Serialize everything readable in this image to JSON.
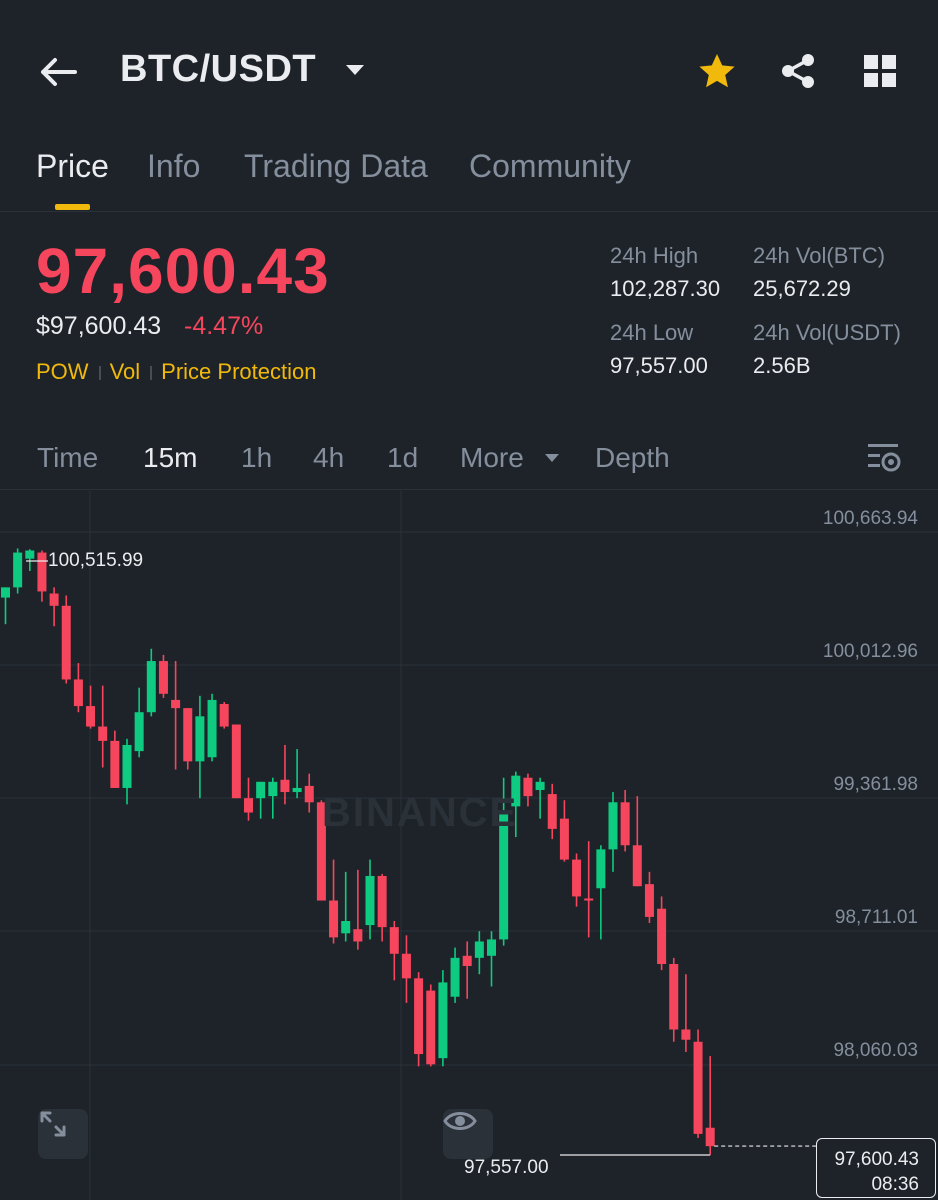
{
  "header": {
    "pair": "BTC/USDT",
    "back_icon": "arrow-left-icon",
    "favorite_icon": "star-icon",
    "share_icon": "share-icon",
    "grid_icon": "grid-icon",
    "accent_color": "#f0b90b"
  },
  "tabs": [
    {
      "label": "Price",
      "active": true
    },
    {
      "label": "Info",
      "active": false
    },
    {
      "label": "Trading Data",
      "active": false
    },
    {
      "label": "Community",
      "active": false
    }
  ],
  "price": {
    "last": "97,600.43",
    "usd": "$97,600.43",
    "change": "-4.47%",
    "color_down": "#f6465d",
    "color_up": "#0ecb81"
  },
  "tags": [
    "POW",
    "Vol",
    "Price Protection"
  ],
  "stats": {
    "high_label": "24h High",
    "high_value": "102,287.30",
    "vol_btc_label": "24h Vol(BTC)",
    "vol_btc_value": "25,672.29",
    "low_label": "24h Low",
    "low_value": "97,557.00",
    "vol_usdt_label": "24h Vol(USDT)",
    "vol_usdt_value": "2.56B"
  },
  "intervals": {
    "items": [
      "Time",
      "15m",
      "1h",
      "4h",
      "1d",
      "More",
      "Depth"
    ],
    "active": "15m"
  },
  "chart_data": {
    "type": "candlestick",
    "interval": "15m",
    "y_axis_labels": [
      "100,663.94",
      "100,012.96",
      "99,361.98",
      "98,711.01",
      "98,060.03"
    ],
    "ylim": [
      97300,
      100800
    ],
    "max_label": "100,515.99",
    "min_label": "97,557.00",
    "last_price": "97,600.43",
    "countdown": "08:36",
    "watermark": "BINANCE",
    "candles": [
      {
        "o": 100280,
        "h": 100330,
        "l": 100150,
        "c": 100330
      },
      {
        "o": 100330,
        "h": 100520,
        "l": 100300,
        "c": 100500
      },
      {
        "o": 100470,
        "h": 100516,
        "l": 100410,
        "c": 100510
      },
      {
        "o": 100500,
        "h": 100510,
        "l": 100260,
        "c": 100310
      },
      {
        "o": 100300,
        "h": 100330,
        "l": 100140,
        "c": 100240
      },
      {
        "o": 100240,
        "h": 100290,
        "l": 99860,
        "c": 99880
      },
      {
        "o": 99880,
        "h": 99960,
        "l": 99720,
        "c": 99750
      },
      {
        "o": 99750,
        "h": 99850,
        "l": 99640,
        "c": 99650
      },
      {
        "o": 99650,
        "h": 99850,
        "l": 99450,
        "c": 99580
      },
      {
        "o": 99580,
        "h": 99630,
        "l": 99350,
        "c": 99350
      },
      {
        "o": 99350,
        "h": 99590,
        "l": 99270,
        "c": 99560
      },
      {
        "o": 99530,
        "h": 99840,
        "l": 99500,
        "c": 99720
      },
      {
        "o": 99720,
        "h": 100030,
        "l": 99700,
        "c": 99970
      },
      {
        "o": 99970,
        "h": 100000,
        "l": 99790,
        "c": 99810
      },
      {
        "o": 99780,
        "h": 99970,
        "l": 99440,
        "c": 99740
      },
      {
        "o": 99740,
        "h": 99740,
        "l": 99440,
        "c": 99480
      },
      {
        "o": 99480,
        "h": 99800,
        "l": 99300,
        "c": 99700
      },
      {
        "o": 99500,
        "h": 99810,
        "l": 99480,
        "c": 99780
      },
      {
        "o": 99760,
        "h": 99770,
        "l": 99640,
        "c": 99650
      },
      {
        "o": 99660,
        "h": 99660,
        "l": 99300,
        "c": 99300
      },
      {
        "o": 99300,
        "h": 99400,
        "l": 99190,
        "c": 99230
      },
      {
        "o": 99300,
        "h": 99380,
        "l": 99200,
        "c": 99380
      },
      {
        "o": 99310,
        "h": 99400,
        "l": 99200,
        "c": 99380
      },
      {
        "o": 99390,
        "h": 99560,
        "l": 99270,
        "c": 99330
      },
      {
        "o": 99330,
        "h": 99540,
        "l": 99300,
        "c": 99350
      },
      {
        "o": 99360,
        "h": 99420,
        "l": 99230,
        "c": 99280
      },
      {
        "o": 99280,
        "h": 99290,
        "l": 98800,
        "c": 98800
      },
      {
        "o": 98800,
        "h": 99000,
        "l": 98590,
        "c": 98620
      },
      {
        "o": 98640,
        "h": 98940,
        "l": 98600,
        "c": 98700
      },
      {
        "o": 98660,
        "h": 98950,
        "l": 98560,
        "c": 98600
      },
      {
        "o": 98680,
        "h": 99000,
        "l": 98610,
        "c": 98920
      },
      {
        "o": 98920,
        "h": 98930,
        "l": 98600,
        "c": 98670
      },
      {
        "o": 98670,
        "h": 98700,
        "l": 98410,
        "c": 98540
      },
      {
        "o": 98540,
        "h": 98630,
        "l": 98300,
        "c": 98420
      },
      {
        "o": 98420,
        "h": 98450,
        "l": 97990,
        "c": 98050
      },
      {
        "o": 98360,
        "h": 98390,
        "l": 97990,
        "c": 98000
      },
      {
        "o": 98030,
        "h": 98460,
        "l": 97990,
        "c": 98400
      },
      {
        "o": 98330,
        "h": 98570,
        "l": 98300,
        "c": 98520
      },
      {
        "o": 98530,
        "h": 98600,
        "l": 98320,
        "c": 98480
      },
      {
        "o": 98520,
        "h": 98650,
        "l": 98440,
        "c": 98600
      },
      {
        "o": 98530,
        "h": 98650,
        "l": 98380,
        "c": 98610
      },
      {
        "o": 98610,
        "h": 99400,
        "l": 98580,
        "c": 99230
      },
      {
        "o": 99260,
        "h": 99430,
        "l": 99110,
        "c": 99410
      },
      {
        "o": 99400,
        "h": 99420,
        "l": 99260,
        "c": 99310
      },
      {
        "o": 99340,
        "h": 99400,
        "l": 99200,
        "c": 99380
      },
      {
        "o": 99320,
        "h": 99370,
        "l": 99100,
        "c": 99150
      },
      {
        "o": 99200,
        "h": 99290,
        "l": 98990,
        "c": 99000
      },
      {
        "o": 99000,
        "h": 99030,
        "l": 98770,
        "c": 98820
      },
      {
        "o": 98810,
        "h": 99090,
        "l": 98620,
        "c": 98800
      },
      {
        "o": 98860,
        "h": 99070,
        "l": 98610,
        "c": 99050
      },
      {
        "o": 99050,
        "h": 99330,
        "l": 98940,
        "c": 99280
      },
      {
        "o": 99280,
        "h": 99340,
        "l": 99040,
        "c": 99070
      },
      {
        "o": 99070,
        "h": 99310,
        "l": 98870,
        "c": 98870
      },
      {
        "o": 98880,
        "h": 98940,
        "l": 98690,
        "c": 98720
      },
      {
        "o": 98760,
        "h": 98820,
        "l": 98460,
        "c": 98490
      },
      {
        "o": 98490,
        "h": 98520,
        "l": 98110,
        "c": 98170
      },
      {
        "o": 98170,
        "h": 98440,
        "l": 98060,
        "c": 98120
      },
      {
        "o": 98110,
        "h": 98170,
        "l": 97640,
        "c": 97660
      },
      {
        "o": 97690,
        "h": 98040,
        "l": 97557,
        "c": 97600
      }
    ]
  },
  "chart_controls": {
    "expand_icon": "expand-icon",
    "visibility_icon": "eye-icon",
    "settings_icon": "chart-settings-icon"
  }
}
